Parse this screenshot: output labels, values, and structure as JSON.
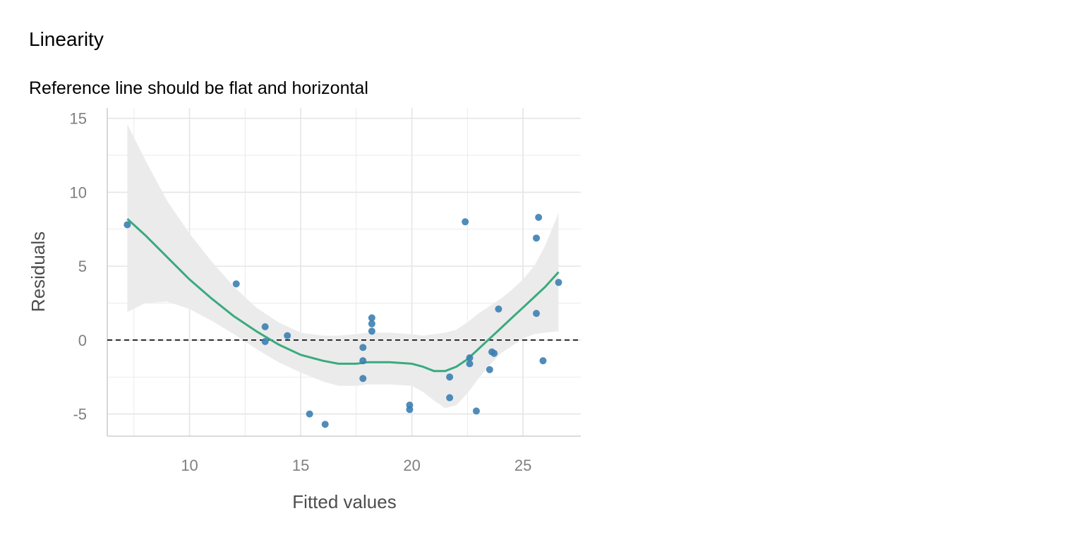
{
  "chart_data": {
    "type": "scatter",
    "title": "Linearity",
    "subtitle": "Reference line should be flat and horizontal",
    "xlabel": "Fitted values",
    "ylabel": "Residuals",
    "xlim": [
      6.3,
      27.6
    ],
    "ylim": [
      -6.5,
      15.7
    ],
    "x_ticks": [
      10,
      15,
      20,
      25
    ],
    "x_tick_labels": [
      "10",
      "15",
      "20",
      "25"
    ],
    "y_ticks": [
      -5,
      0,
      5,
      10,
      15
    ],
    "y_tick_labels": [
      "-5",
      "0",
      "5",
      "10",
      "15"
    ],
    "grid": true,
    "reference_line_y": 0,
    "colors": {
      "points": "#3c7fb1",
      "smooth": "#3aaa7f",
      "band": "#ebebeb",
      "grid": "#e5e5e5",
      "reference": "#000000"
    },
    "points": [
      {
        "x": 7.2,
        "y": 7.8
      },
      {
        "x": 12.1,
        "y": 3.8
      },
      {
        "x": 13.4,
        "y": 0.9
      },
      {
        "x": 13.4,
        "y": -0.1
      },
      {
        "x": 14.4,
        "y": 0.3
      },
      {
        "x": 15.4,
        "y": -5.0
      },
      {
        "x": 16.1,
        "y": -5.7
      },
      {
        "x": 17.8,
        "y": -0.5
      },
      {
        "x": 17.8,
        "y": -1.4
      },
      {
        "x": 17.8,
        "y": -2.6
      },
      {
        "x": 18.2,
        "y": 1.5
      },
      {
        "x": 18.2,
        "y": 1.1
      },
      {
        "x": 18.2,
        "y": 0.6
      },
      {
        "x": 19.9,
        "y": -4.4
      },
      {
        "x": 19.9,
        "y": -4.7
      },
      {
        "x": 21.7,
        "y": -2.5
      },
      {
        "x": 21.7,
        "y": -3.9
      },
      {
        "x": 22.4,
        "y": 8.0
      },
      {
        "x": 22.6,
        "y": -1.2
      },
      {
        "x": 22.6,
        "y": -1.6
      },
      {
        "x": 22.9,
        "y": -4.8
      },
      {
        "x": 23.5,
        "y": -2.0
      },
      {
        "x": 23.6,
        "y": -0.8
      },
      {
        "x": 23.7,
        "y": -0.9
      },
      {
        "x": 23.9,
        "y": 2.1
      },
      {
        "x": 25.6,
        "y": 6.9
      },
      {
        "x": 25.6,
        "y": 1.8
      },
      {
        "x": 25.7,
        "y": 8.3
      },
      {
        "x": 25.9,
        "y": -1.4
      },
      {
        "x": 26.6,
        "y": 3.9
      }
    ],
    "smooth": {
      "x": [
        7.2,
        8.0,
        9.0,
        10.0,
        11.0,
        12.0,
        13.0,
        14.0,
        15.0,
        16.0,
        16.7,
        17.5,
        18.0,
        19.0,
        20.0,
        20.5,
        21.0,
        21.5,
        22.0,
        22.5,
        23.0,
        23.5,
        24.0,
        24.5,
        25.0,
        25.5,
        26.0,
        26.6
      ],
      "y": [
        8.2,
        7.1,
        5.6,
        4.1,
        2.8,
        1.6,
        0.6,
        -0.3,
        -1.0,
        -1.4,
        -1.6,
        -1.6,
        -1.5,
        -1.5,
        -1.6,
        -1.8,
        -2.1,
        -2.1,
        -1.8,
        -1.3,
        -0.6,
        0.1,
        0.8,
        1.5,
        2.2,
        2.9,
        3.6,
        4.6
      ],
      "lower": [
        1.9,
        2.5,
        2.6,
        2.1,
        1.3,
        0.4,
        -0.6,
        -1.5,
        -2.2,
        -2.8,
        -3.1,
        -3.1,
        -3.0,
        -3.0,
        -3.1,
        -3.5,
        -4.1,
        -4.6,
        -4.4,
        -3.6,
        -2.6,
        -1.7,
        -0.9,
        -0.4,
        0.1,
        0.4,
        0.5,
        0.6
      ],
      "upper": [
        14.6,
        12.2,
        9.4,
        7.2,
        5.3,
        3.6,
        2.2,
        1.2,
        0.5,
        0.3,
        0.3,
        0.4,
        0.5,
        0.5,
        0.4,
        0.3,
        0.4,
        0.5,
        0.7,
        1.2,
        1.8,
        2.3,
        2.8,
        3.4,
        4.1,
        5.0,
        6.4,
        8.6
      ]
    }
  }
}
